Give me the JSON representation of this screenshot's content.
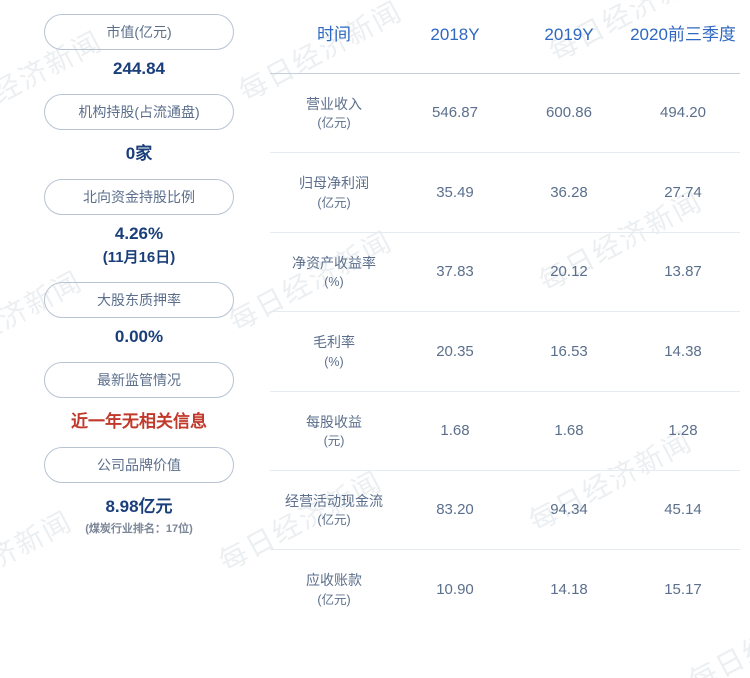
{
  "watermark_text": "每日经济新闻",
  "left": {
    "items": [
      {
        "label": "市值(亿元)",
        "value": "244.84"
      },
      {
        "label": "机构持股(占流通盘)",
        "value": "0家"
      },
      {
        "label": "北向资金持股比例",
        "value": "4.26%",
        "sub": "(11月16日)"
      },
      {
        "label": "大股东质押率",
        "value": "0.00%"
      },
      {
        "label": "最新监管情况",
        "value": "近一年无相关信息",
        "alert": true
      },
      {
        "label": "公司品牌价值",
        "value": "8.98亿元",
        "foot": "(煤炭行业排名：17位)"
      }
    ]
  },
  "table": {
    "headers": [
      "时间",
      "2018Y",
      "2019Y",
      "2020前三季度"
    ],
    "rows": [
      {
        "metric": "营业收入",
        "unit": "(亿元)",
        "vals": [
          "546.87",
          "600.86",
          "494.20"
        ]
      },
      {
        "metric": "归母净利润",
        "unit": "(亿元)",
        "vals": [
          "35.49",
          "36.28",
          "27.74"
        ]
      },
      {
        "metric": "净资产收益率",
        "unit": "(%)",
        "vals": [
          "37.83",
          "20.12",
          "13.87"
        ]
      },
      {
        "metric": "毛利率",
        "unit": "(%)",
        "vals": [
          "20.35",
          "16.53",
          "14.38"
        ]
      },
      {
        "metric": "每股收益",
        "unit": "(元)",
        "vals": [
          "1.68",
          "1.68",
          "1.28"
        ]
      },
      {
        "metric": "经营活动现金流",
        "unit": "(亿元)",
        "vals": [
          "83.20",
          "94.34",
          "45.14"
        ]
      },
      {
        "metric": "应收账款",
        "unit": "(亿元)",
        "vals": [
          "10.90",
          "14.18",
          "15.17"
        ]
      }
    ]
  },
  "styles": {
    "page_bg": "#ffffff",
    "pill_border": "#b8c3d2",
    "pill_text": "#5b6f8c",
    "value_text": "#1a3e7a",
    "alert_text": "#c0392b",
    "th_text": "#2f68c1",
    "td_text": "#5b6f8c",
    "row_border": "#e6ebf1",
    "header_border": "#c6d0dc",
    "watermark_color": "#eceff2"
  }
}
